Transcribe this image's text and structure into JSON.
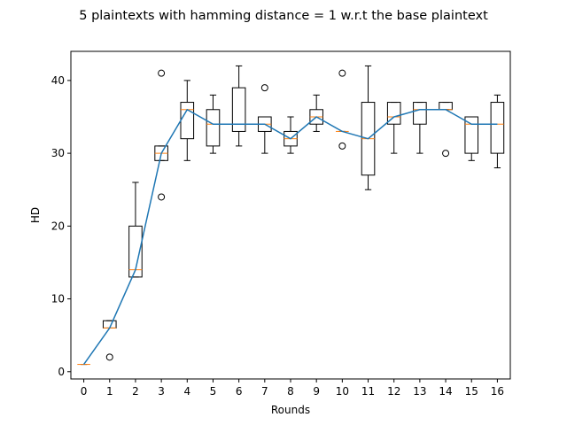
{
  "chart_data": {
    "type": "box",
    "title": "5 plaintexts with hamming distance = 1 w.r.t the base plaintext",
    "xlabel": "Rounds",
    "ylabel": "HD",
    "categories": [
      "0",
      "1",
      "2",
      "3",
      "4",
      "5",
      "6",
      "7",
      "8",
      "9",
      "10",
      "11",
      "12",
      "13",
      "14",
      "15",
      "16"
    ],
    "ylim": [
      -1,
      44
    ],
    "yticks": [
      0,
      10,
      20,
      30,
      40
    ],
    "grid": false,
    "boxes": [
      {
        "x": 0,
        "whislo": 1,
        "q1": 1,
        "med": 1,
        "q3": 1,
        "whishi": 1,
        "fliers": []
      },
      {
        "x": 1,
        "whislo": 6,
        "q1": 6,
        "med": 6,
        "q3": 7,
        "whishi": 7,
        "fliers": [
          2
        ]
      },
      {
        "x": 2,
        "whislo": 13,
        "q1": 13,
        "med": 14,
        "q3": 20,
        "whishi": 26,
        "fliers": []
      },
      {
        "x": 3,
        "whislo": 29,
        "q1": 29,
        "med": 30,
        "q3": 31,
        "whishi": 31,
        "fliers": [
          24,
          41
        ]
      },
      {
        "x": 4,
        "whislo": 29,
        "q1": 32,
        "med": 36,
        "q3": 37,
        "whishi": 40,
        "fliers": []
      },
      {
        "x": 5,
        "whislo": 30,
        "q1": 31,
        "med": 34,
        "q3": 36,
        "whishi": 38,
        "fliers": []
      },
      {
        "x": 6,
        "whislo": 31,
        "q1": 33,
        "med": 34,
        "q3": 39,
        "whishi": 42,
        "fliers": []
      },
      {
        "x": 7,
        "whislo": 30,
        "q1": 33,
        "med": 34,
        "q3": 35,
        "whishi": 35,
        "fliers": [
          39
        ]
      },
      {
        "x": 8,
        "whislo": 30,
        "q1": 31,
        "med": 32,
        "q3": 33,
        "whishi": 35,
        "fliers": []
      },
      {
        "x": 9,
        "whislo": 33,
        "q1": 34,
        "med": 35,
        "q3": 36,
        "whishi": 38,
        "fliers": []
      },
      {
        "x": 10,
        "whislo": 33,
        "q1": 33,
        "med": 33,
        "q3": 33,
        "whishi": 33,
        "fliers": [
          31,
          41
        ]
      },
      {
        "x": 11,
        "whislo": 25,
        "q1": 27,
        "med": 32,
        "q3": 37,
        "whishi": 42,
        "fliers": []
      },
      {
        "x": 12,
        "whislo": 30,
        "q1": 34,
        "med": 35,
        "q3": 37,
        "whishi": 37,
        "fliers": []
      },
      {
        "x": 13,
        "whislo": 30,
        "q1": 34,
        "med": 36,
        "q3": 37,
        "whishi": 37,
        "fliers": []
      },
      {
        "x": 14,
        "whislo": 36,
        "q1": 36,
        "med": 36,
        "q3": 37,
        "whishi": 37,
        "fliers": [
          30
        ]
      },
      {
        "x": 15,
        "whislo": 29,
        "q1": 30,
        "med": 34,
        "q3": 35,
        "whishi": 35,
        "fliers": []
      },
      {
        "x": 16,
        "whislo": 28,
        "q1": 30,
        "med": 34,
        "q3": 37,
        "whishi": 38,
        "fliers": []
      }
    ],
    "median_line": {
      "x": [
        0,
        1,
        2,
        3,
        4,
        5,
        6,
        7,
        8,
        9,
        10,
        11,
        12,
        13,
        14,
        15,
        16
      ],
      "y": [
        1,
        6,
        14,
        30,
        36,
        34,
        34,
        34,
        32,
        35,
        33,
        32,
        35,
        36,
        36,
        34,
        34
      ],
      "color": "#1f77b4"
    },
    "colors": {
      "median": "#ff7f0e",
      "box": "#000000",
      "line": "#1f77b4"
    }
  }
}
